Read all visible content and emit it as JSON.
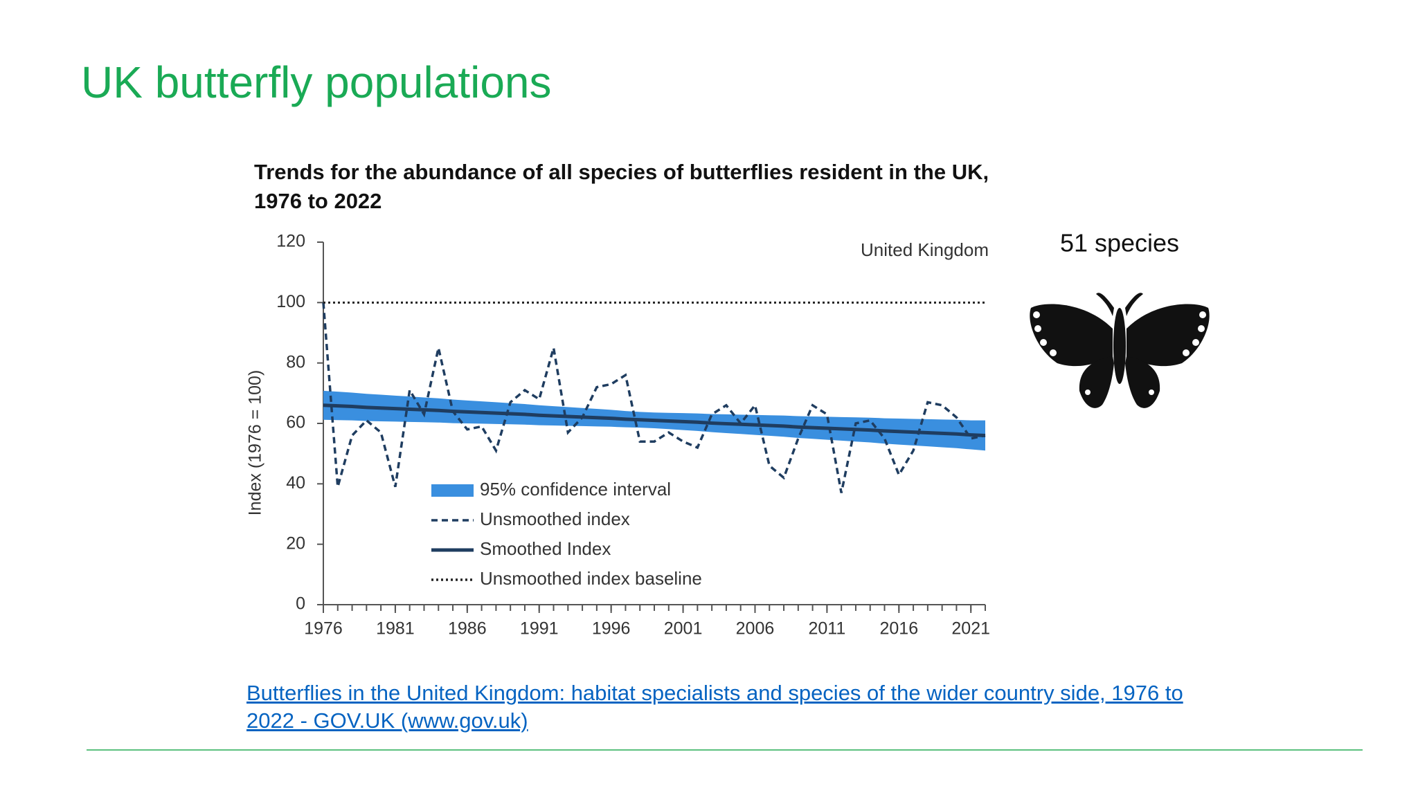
{
  "slide_title": "UK butterfly populations",
  "species_label": "51 species",
  "link": "Butterflies in the United Kingdom: habitat specialists and species of the wider country side, 1976 to 2022 - GOV.UK (www.gov.uk)",
  "chart_data": {
    "type": "line",
    "title": "Trends for the abundance of all species of butterflies resident in the UK, 1976 to 2022",
    "annotation": "United Kingdom",
    "y_label": "Index (1976 = 100)",
    "x": [
      1976,
      1977,
      1978,
      1979,
      1980,
      1981,
      1982,
      1983,
      1984,
      1985,
      1986,
      1987,
      1988,
      1989,
      1990,
      1991,
      1992,
      1993,
      1994,
      1995,
      1996,
      1997,
      1998,
      1999,
      2000,
      2001,
      2002,
      2003,
      2004,
      2005,
      2006,
      2007,
      2008,
      2009,
      2010,
      2011,
      2012,
      2013,
      2014,
      2015,
      2016,
      2017,
      2018,
      2019,
      2020,
      2021,
      2022
    ],
    "xlim": [
      1976,
      2022
    ],
    "xticks": [
      1976,
      1981,
      1986,
      1991,
      1996,
      2001,
      2006,
      2011,
      2016,
      2021
    ],
    "ylim": [
      0,
      120
    ],
    "yticks": [
      0,
      20,
      40,
      60,
      80,
      100,
      120
    ],
    "legend": "lower-left",
    "series": [
      {
        "name": "95% confidence interval",
        "style": "band",
        "color": "#3a8fdf",
        "upper": [
          70.8,
          70.5,
          70.2,
          69.8,
          69.5,
          69.2,
          68.9,
          68.6,
          68.3,
          67.9,
          67.6,
          67.3,
          67.0,
          66.7,
          66.4,
          66.0,
          65.7,
          65.4,
          65.1,
          64.8,
          64.5,
          64.1,
          63.8,
          63.6,
          63.5,
          63.4,
          63.3,
          63.1,
          63.0,
          62.9,
          62.8,
          62.7,
          62.6,
          62.4,
          62.3,
          62.2,
          62.1,
          62.0,
          61.9,
          61.7,
          61.6,
          61.5,
          61.4,
          61.3,
          61.2,
          61.0,
          61.0
        ],
        "lower": [
          61.2,
          61.1,
          61.0,
          60.8,
          60.7,
          60.6,
          60.5,
          60.4,
          60.3,
          60.1,
          60.0,
          59.9,
          59.8,
          59.7,
          59.6,
          59.4,
          59.3,
          59.2,
          59.1,
          59.0,
          58.9,
          58.7,
          58.6,
          58.4,
          58.1,
          57.8,
          57.5,
          57.1,
          56.8,
          56.5,
          56.2,
          55.9,
          55.6,
          55.2,
          54.9,
          54.6,
          54.3,
          54.0,
          53.7,
          53.3,
          53.0,
          52.7,
          52.4,
          52.1,
          51.8,
          51.4,
          51.0
        ]
      },
      {
        "name": "Unsmoothed index",
        "style": "dashed",
        "color": "#1f3d60",
        "values": [
          100,
          39,
          56,
          61,
          57,
          39,
          71,
          63,
          85,
          64,
          58,
          59,
          51,
          67,
          71,
          68,
          85,
          57,
          62,
          72,
          73,
          76,
          54,
          54,
          57,
          54,
          52,
          63,
          66,
          60,
          66,
          46,
          42,
          55,
          66,
          63,
          37,
          60,
          61,
          55,
          43,
          51,
          67,
          66,
          62,
          55,
          56
        ]
      },
      {
        "name": "Smoothed Index",
        "style": "solid",
        "color": "#1f3d60",
        "values": [
          66.0,
          65.8,
          65.6,
          65.3,
          65.1,
          64.9,
          64.7,
          64.5,
          64.3,
          64.0,
          63.8,
          63.6,
          63.4,
          63.2,
          63.0,
          62.7,
          62.5,
          62.3,
          62.1,
          61.9,
          61.7,
          61.4,
          61.2,
          61.0,
          60.8,
          60.6,
          60.4,
          60.1,
          59.9,
          59.7,
          59.5,
          59.3,
          59.1,
          58.8,
          58.6,
          58.4,
          58.2,
          58.0,
          57.8,
          57.5,
          57.3,
          57.1,
          56.9,
          56.7,
          56.5,
          56.2,
          56.0
        ]
      },
      {
        "name": "Unsmoothed index baseline",
        "style": "dotted",
        "color": "#222222",
        "value": 100
      }
    ]
  }
}
